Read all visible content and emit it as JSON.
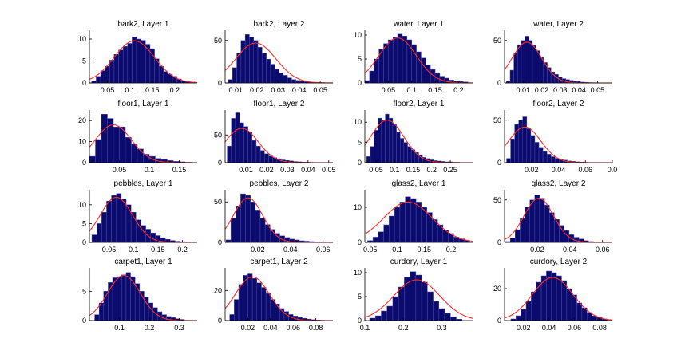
{
  "colors": {
    "bar": "#0b0b6e",
    "bar_edge": "#4a4ab0",
    "fit": "#ff2a2a"
  },
  "chart_data": [
    {
      "type": "bar",
      "title": "bark2, Layer 1",
      "xlim": [
        0.01,
        0.25
      ],
      "ylim": [
        0,
        12
      ],
      "xticks": [
        "0.05",
        "0.1",
        "0.15",
        "0.2"
      ],
      "yticks": [
        "0",
        "5",
        "10"
      ],
      "bins": [
        0.02,
        0.03,
        0.04,
        0.05,
        0.06,
        0.07,
        0.08,
        0.09,
        0.1,
        0.11,
        0.12,
        0.13,
        0.14,
        0.15,
        0.16,
        0.17,
        0.18,
        0.19,
        0.2,
        0.21,
        0.22,
        0.23,
        0.24
      ],
      "values": [
        0.5,
        1.5,
        2.8,
        3.8,
        5.2,
        6.5,
        7.5,
        8.3,
        9.0,
        10.5,
        10.0,
        9.7,
        8.8,
        7.8,
        5.5,
        3.8,
        2.6,
        2.0,
        1.5,
        0.9,
        0.5,
        0.3,
        0.2
      ],
      "fit": {
        "mu": 0.11,
        "sigma": 0.045,
        "peak": 9.6
      }
    },
    {
      "type": "bar",
      "title": "bark2, Layer 2",
      "xlim": [
        0.005,
        0.056
      ],
      "ylim": [
        0,
        62
      ],
      "xticks": [
        "0.01",
        "0.02",
        "0.03",
        "0.04",
        "0.05"
      ],
      "yticks": [
        "0",
        "50"
      ],
      "bins": [
        0.0075,
        0.0095,
        0.0115,
        0.0135,
        0.0155,
        0.0175,
        0.0195,
        0.0215,
        0.0235,
        0.0255,
        0.0275,
        0.0295,
        0.0315,
        0.0335,
        0.0355,
        0.0375,
        0.0395,
        0.0415,
        0.0435,
        0.0455,
        0.0475,
        0.0495,
        0.0515
      ],
      "values": [
        4,
        18,
        35,
        50,
        57,
        54,
        50,
        42,
        35,
        28,
        22,
        16,
        12,
        9,
        6,
        4,
        3,
        2,
        1.5,
        1,
        0.8,
        0.5,
        0.3
      ],
      "fit": {
        "mu": 0.0195,
        "sigma": 0.0095,
        "peak": 47
      }
    },
    {
      "type": "bar",
      "title": "water, Layer 1",
      "xlim": [
        0.0,
        0.23
      ],
      "ylim": [
        0,
        11
      ],
      "xticks": [
        "0.05",
        "0.1",
        "0.15",
        "0.2"
      ],
      "yticks": [
        "0",
        "5",
        "10"
      ],
      "bins": [
        0.005,
        0.015,
        0.025,
        0.035,
        0.045,
        0.055,
        0.065,
        0.075,
        0.085,
        0.095,
        0.105,
        0.115,
        0.125,
        0.135,
        0.145,
        0.155,
        0.165,
        0.175,
        0.185,
        0.195,
        0.205,
        0.215
      ],
      "values": [
        0.5,
        2.5,
        5.0,
        7.0,
        8.2,
        9.0,
        9.6,
        10.2,
        9.8,
        9.0,
        8.0,
        6.5,
        5.2,
        3.8,
        2.8,
        2.0,
        1.4,
        1.0,
        0.6,
        0.4,
        0.3,
        0.2
      ],
      "fit": {
        "mu": 0.07,
        "sigma": 0.04,
        "peak": 9.4
      }
    },
    {
      "type": "bar",
      "title": "water, Layer 2",
      "xlim": [
        0.0,
        0.058
      ],
      "ylim": [
        0,
        62
      ],
      "xticks": [
        "0.01",
        "0.02",
        "0.03",
        "0.04",
        "0.05"
      ],
      "yticks": [
        "0",
        "50"
      ],
      "bins": [
        0.002,
        0.004,
        0.006,
        0.008,
        0.01,
        0.012,
        0.014,
        0.016,
        0.018,
        0.02,
        0.022,
        0.024,
        0.026,
        0.028,
        0.03,
        0.032,
        0.034,
        0.036,
        0.038,
        0.04,
        0.042,
        0.044,
        0.046,
        0.048,
        0.05
      ],
      "values": [
        2,
        15,
        35,
        45,
        50,
        55,
        50,
        44,
        38,
        30,
        24,
        18,
        13,
        10,
        7,
        5,
        4,
        3,
        2,
        1.5,
        1,
        0.8,
        0.5,
        0.4,
        0.3
      ],
      "fit": {
        "mu": 0.012,
        "sigma": 0.008,
        "peak": 48
      }
    },
    {
      "type": "bar",
      "title": "floor1, Layer 1",
      "xlim": [
        0.0,
        0.18
      ],
      "ylim": [
        0,
        25
      ],
      "xticks": [
        "0.05",
        "0.1",
        "0.15"
      ],
      "yticks": [
        "0",
        "10",
        "20"
      ],
      "bins": [
        0.005,
        0.015,
        0.025,
        0.035,
        0.045,
        0.055,
        0.065,
        0.075,
        0.085,
        0.095,
        0.105,
        0.115,
        0.125,
        0.135,
        0.145,
        0.155,
        0.165
      ],
      "values": [
        3,
        11,
        23,
        21,
        17,
        17,
        12,
        9,
        6.5,
        4,
        3,
        2,
        1.5,
        1,
        0.6,
        0.4,
        0.2
      ],
      "fit": {
        "mu": 0.04,
        "sigma": 0.03,
        "peak": 18
      }
    },
    {
      "type": "bar",
      "title": "floor1, Layer 2",
      "xlim": [
        0.0,
        0.052
      ],
      "ylim": [
        0,
        95
      ],
      "xticks": [
        "0.01",
        "0.02",
        "0.03",
        "0.04",
        "0.05"
      ],
      "yticks": [
        "0",
        "50"
      ],
      "bins": [
        0.002,
        0.004,
        0.006,
        0.008,
        0.01,
        0.012,
        0.014,
        0.016,
        0.018,
        0.02,
        0.022,
        0.024,
        0.026,
        0.028,
        0.03,
        0.032,
        0.034,
        0.036,
        0.038,
        0.04,
        0.042,
        0.044
      ],
      "values": [
        30,
        80,
        90,
        72,
        65,
        55,
        40,
        30,
        22,
        16,
        12,
        9,
        7,
        5,
        4,
        3,
        2,
        1.5,
        1,
        0.8,
        0.5,
        0.3
      ],
      "fit": {
        "mu": 0.008,
        "sigma": 0.008,
        "peak": 62
      }
    },
    {
      "type": "bar",
      "title": "floor2, Layer 1",
      "xlim": [
        0.02,
        0.31
      ],
      "ylim": [
        0,
        13
      ],
      "xticks": [
        "0.05",
        "0.1",
        "0.15",
        "0.2",
        "0.25"
      ],
      "yticks": [
        "0",
        "5",
        "10"
      ],
      "bins": [
        0.03,
        0.04,
        0.05,
        0.06,
        0.07,
        0.08,
        0.09,
        0.1,
        0.11,
        0.12,
        0.13,
        0.14,
        0.15,
        0.16,
        0.17,
        0.18,
        0.19,
        0.2,
        0.21,
        0.22,
        0.23,
        0.24,
        0.25,
        0.26,
        0.27
      ],
      "values": [
        1.5,
        4,
        8,
        11,
        10.5,
        12,
        11,
        9.5,
        7.5,
        6,
        5,
        4,
        3.2,
        2.5,
        1.8,
        1.3,
        1,
        0.7,
        0.5,
        0.4,
        0.3,
        0.2,
        0.2,
        0.1,
        0.1
      ],
      "fit": {
        "mu": 0.08,
        "sigma": 0.045,
        "peak": 10.5
      }
    },
    {
      "type": "bar",
      "title": "floor2, Layer 2",
      "xlim": [
        0.0,
        0.08
      ],
      "ylim": [
        0,
        62
      ],
      "xticks": [
        "0.02",
        "0.04",
        "0.06",
        "0.0"
      ],
      "yticks": [
        "0",
        "50"
      ],
      "bins": [
        0.003,
        0.006,
        0.009,
        0.012,
        0.015,
        0.018,
        0.021,
        0.024,
        0.027,
        0.03,
        0.033,
        0.036,
        0.039,
        0.042,
        0.045,
        0.048,
        0.051,
        0.054,
        0.057,
        0.06
      ],
      "values": [
        5,
        28,
        45,
        50,
        54,
        40,
        32,
        24,
        18,
        13,
        10,
        7,
        5,
        4,
        3,
        2,
        1.5,
        1,
        0.6,
        0.4
      ],
      "fit": {
        "mu": 0.015,
        "sigma": 0.012,
        "peak": 42
      }
    },
    {
      "type": "bar",
      "title": "pebbles, Layer 1",
      "xlim": [
        0.01,
        0.23
      ],
      "ylim": [
        0,
        14
      ],
      "xticks": [
        "0.05",
        "0.1",
        "0.15",
        "0.2"
      ],
      "yticks": [
        "0",
        "5",
        "10"
      ],
      "bins": [
        0.02,
        0.03,
        0.04,
        0.05,
        0.06,
        0.07,
        0.08,
        0.09,
        0.1,
        0.11,
        0.12,
        0.13,
        0.14,
        0.15,
        0.16,
        0.17,
        0.18,
        0.19,
        0.2,
        0.21,
        0.22
      ],
      "values": [
        2,
        5,
        8,
        11,
        12.5,
        13,
        11.5,
        10,
        8,
        6,
        4.5,
        3.5,
        2.5,
        1.8,
        1.2,
        0.8,
        0.5,
        0.3,
        0.2,
        0.1,
        0.1
      ],
      "fit": {
        "mu": 0.065,
        "sigma": 0.033,
        "peak": 12
      }
    },
    {
      "type": "bar",
      "title": "pebbles, Layer 2",
      "xlim": [
        0.0,
        0.066
      ],
      "ylim": [
        0,
        65
      ],
      "xticks": [
        "0.02",
        "0.04",
        "0.06"
      ],
      "yticks": [
        "0",
        "50"
      ],
      "bins": [
        0.002,
        0.005,
        0.008,
        0.011,
        0.014,
        0.017,
        0.02,
        0.023,
        0.026,
        0.029,
        0.032,
        0.035,
        0.038,
        0.041,
        0.044,
        0.047,
        0.05,
        0.053,
        0.056,
        0.059
      ],
      "values": [
        3,
        30,
        45,
        60,
        58,
        50,
        40,
        30,
        22,
        16,
        11,
        8,
        6,
        4,
        3,
        2,
        1.5,
        1,
        0.6,
        0.4
      ],
      "fit": {
        "mu": 0.014,
        "sigma": 0.009,
        "peak": 55
      }
    },
    {
      "type": "bar",
      "title": "glass2, Layer 1",
      "xlim": [
        0.04,
        0.24
      ],
      "ylim": [
        0,
        15
      ],
      "xticks": [
        "0.05",
        "0.1",
        "0.15",
        "0.2"
      ],
      "yticks": [
        "0",
        "10"
      ],
      "bins": [
        0.05,
        0.06,
        0.07,
        0.08,
        0.09,
        0.1,
        0.11,
        0.12,
        0.13,
        0.14,
        0.15,
        0.16,
        0.17,
        0.18,
        0.19,
        0.2,
        0.21,
        0.22,
        0.23
      ],
      "values": [
        0.5,
        1.5,
        3,
        5,
        7.5,
        10,
        11.5,
        13,
        12.5,
        11.5,
        10,
        8.5,
        6.5,
        5,
        3.5,
        2.5,
        1.5,
        1,
        0.5
      ],
      "fit": {
        "mu": 0.12,
        "sigma": 0.045,
        "peak": 11.5
      }
    },
    {
      "type": "bar",
      "title": "glass2, Layer 2",
      "xlim": [
        0.0,
        0.066
      ],
      "ylim": [
        0,
        62
      ],
      "xticks": [
        "0.02",
        "0.04",
        "0.06"
      ],
      "yticks": [
        "0",
        "50"
      ],
      "bins": [
        0.002,
        0.005,
        0.008,
        0.011,
        0.014,
        0.017,
        0.02,
        0.023,
        0.026,
        0.029,
        0.032,
        0.035,
        0.038,
        0.041,
        0.044,
        0.047,
        0.05,
        0.053
      ],
      "values": [
        1,
        5,
        15,
        28,
        42,
        50,
        56,
        52,
        44,
        35,
        27,
        20,
        14,
        9,
        6,
        4,
        2,
        1
      ],
      "fit": {
        "mu": 0.021,
        "sigma": 0.009,
        "peak": 52
      }
    },
    {
      "type": "bar",
      "title": "carpet1, Layer 1",
      "xlim": [
        0.0,
        0.36
      ],
      "ylim": [
        0,
        9
      ],
      "xticks": [
        "0.1",
        "0.2",
        "0.3"
      ],
      "yticks": [
        "0",
        "5"
      ],
      "bins": [
        0.025,
        0.04,
        0.055,
        0.07,
        0.085,
        0.1,
        0.115,
        0.13,
        0.145,
        0.16,
        0.175,
        0.19,
        0.205,
        0.22,
        0.235,
        0.25,
        0.265,
        0.28,
        0.295,
        0.31
      ],
      "values": [
        1,
        3,
        5,
        6.5,
        7.3,
        7.5,
        7.8,
        8.2,
        7.5,
        6.3,
        5,
        4,
        3,
        2.2,
        1.5,
        1,
        0.7,
        0.5,
        0.3,
        0.2
      ],
      "fit": {
        "mu": 0.115,
        "sigma": 0.055,
        "peak": 7.7
      }
    },
    {
      "type": "bar",
      "title": "carpet1, Layer 2",
      "xlim": [
        0.0,
        0.095
      ],
      "ylim": [
        0,
        35
      ],
      "xticks": [
        "0.02",
        "0.04",
        "0.06",
        "0.08"
      ],
      "yticks": [
        "0",
        "20"
      ],
      "bins": [
        0.006,
        0.01,
        0.014,
        0.018,
        0.022,
        0.026,
        0.03,
        0.034,
        0.038,
        0.042,
        0.046,
        0.05,
        0.054,
        0.058,
        0.062,
        0.066,
        0.07,
        0.074,
        0.078,
        0.082,
        0.086
      ],
      "values": [
        4,
        14,
        24,
        30,
        31,
        28,
        25,
        22,
        18,
        14,
        11,
        8,
        6,
        4,
        3,
        2,
        1.5,
        1,
        0.6,
        0.4,
        0.2
      ],
      "fit": {
        "mu": 0.024,
        "sigma": 0.015,
        "peak": 29
      }
    },
    {
      "type": "bar",
      "title": "curdory, Layer 1",
      "xlim": [
        0.1,
        0.38
      ],
      "ylim": [
        0,
        11
      ],
      "xticks": [
        "0.1",
        "0.2",
        "0.3"
      ],
      "yticks": [
        "0",
        "5",
        "10"
      ],
      "bins": [
        0.12,
        0.135,
        0.15,
        0.165,
        0.18,
        0.195,
        0.21,
        0.225,
        0.24,
        0.255,
        0.27,
        0.285,
        0.3,
        0.315,
        0.33,
        0.345
      ],
      "values": [
        0.5,
        1,
        2,
        3,
        5,
        7,
        9,
        10.2,
        9.5,
        8,
        6,
        4,
        2.5,
        1.5,
        0.8,
        0.3
      ],
      "fit": {
        "mu": 0.235,
        "sigma": 0.06,
        "peak": 8.5
      }
    },
    {
      "type": "bar",
      "title": "curdory, Layer 2",
      "xlim": [
        0.005,
        0.09
      ],
      "ylim": [
        0,
        33
      ],
      "xticks": [
        "0.02",
        "0.04",
        "0.06",
        "0.08"
      ],
      "yticks": [
        "0",
        "20"
      ],
      "bins": [
        0.012,
        0.016,
        0.02,
        0.024,
        0.028,
        0.032,
        0.036,
        0.04,
        0.044,
        0.048,
        0.052,
        0.056,
        0.06,
        0.064,
        0.068,
        0.072,
        0.076,
        0.08,
        0.084
      ],
      "values": [
        1,
        3,
        7,
        12,
        18,
        24,
        28,
        31,
        30,
        28,
        25,
        20,
        16,
        11,
        8,
        5,
        3,
        2,
        1
      ],
      "fit": {
        "mu": 0.043,
        "sigma": 0.016,
        "peak": 27
      }
    }
  ]
}
